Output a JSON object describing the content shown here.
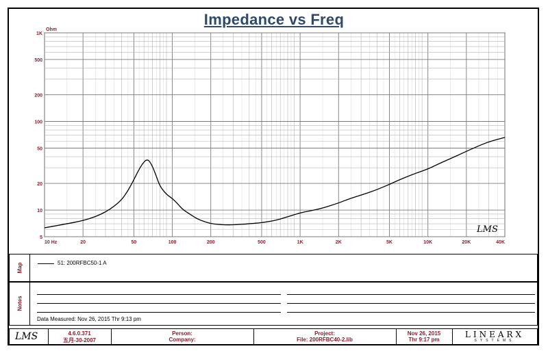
{
  "title": "Impedance vs Freq",
  "chart_data": {
    "type": "line",
    "title": "Impedance vs Freq",
    "ylabel": "Ohm",
    "xscale": "log",
    "yscale": "log",
    "xlim": [
      10,
      40000
    ],
    "ylim": [
      5,
      1000
    ],
    "grid": true,
    "x_ticks": [
      {
        "value": 10,
        "label": "10  Hz"
      },
      {
        "value": 20,
        "label": "20"
      },
      {
        "value": 50,
        "label": "50"
      },
      {
        "value": 100,
        "label": "100"
      },
      {
        "value": 200,
        "label": "200"
      },
      {
        "value": 500,
        "label": "500"
      },
      {
        "value": 1000,
        "label": "1K"
      },
      {
        "value": 2000,
        "label": "2K"
      },
      {
        "value": 5000,
        "label": "5K"
      },
      {
        "value": 10000,
        "label": "10K"
      },
      {
        "value": 20000,
        "label": "20K"
      },
      {
        "value": 40000,
        "label": "40K"
      }
    ],
    "y_ticks": [
      {
        "value": 5,
        "label": "5"
      },
      {
        "value": 10,
        "label": "10"
      },
      {
        "value": 20,
        "label": "20"
      },
      {
        "value": 50,
        "label": "50"
      },
      {
        "value": 100,
        "label": "100"
      },
      {
        "value": 200,
        "label": "200"
      },
      {
        "value": 500,
        "label": "500"
      },
      {
        "value": 1000,
        "label": "1K"
      }
    ],
    "series": [
      {
        "name": "51: 200RFBC50-1  A",
        "color": "#000000",
        "x": [
          10,
          12,
          15,
          20,
          25,
          30,
          35,
          40,
          45,
          50,
          55,
          60,
          63,
          66,
          70,
          75,
          80,
          90,
          100,
          110,
          120,
          140,
          160,
          200,
          250,
          300,
          400,
          500,
          600,
          700,
          800,
          1000,
          1200,
          1500,
          2000,
          2500,
          3000,
          4000,
          5000,
          6000,
          8000,
          10000,
          12000,
          15000,
          20000,
          25000,
          30000,
          40000
        ],
        "y": [
          6.3,
          6.6,
          7.0,
          7.6,
          8.4,
          9.5,
          11.0,
          13.0,
          16.5,
          22.0,
          29.0,
          35.0,
          37.0,
          36.0,
          31.0,
          24.0,
          18.5,
          15.0,
          13.5,
          11.8,
          10.2,
          8.8,
          7.8,
          7.0,
          6.8,
          6.8,
          7.0,
          7.2,
          7.5,
          7.9,
          8.4,
          9.3,
          9.8,
          10.5,
          12.0,
          13.6,
          14.7,
          17.0,
          19.5,
          22.0,
          26.0,
          29.0,
          33.0,
          38.0,
          46.0,
          53.0,
          59.0,
          66.0
        ]
      }
    ]
  },
  "logo_chart": "LMS",
  "map": {
    "label": "Map",
    "entry": "51: 200RFBC50-1  A"
  },
  "notes": {
    "label": "Notes",
    "measured": "Data Measured: Nov 26, 2015  Thr  9:13 pm"
  },
  "footer": {
    "logo": "LMS",
    "version": "4.6.0.371",
    "build": "五月-30-2007",
    "person_label": "Person:",
    "company_label": "Company:",
    "project_label": "Project:",
    "file_label": "File: 200RFBC40-2.lib",
    "date": "Nov 26, 2015",
    "time": "Thr  9:17 pm",
    "brand": "LINEARX",
    "brand_sub": "SYSTEMS"
  }
}
